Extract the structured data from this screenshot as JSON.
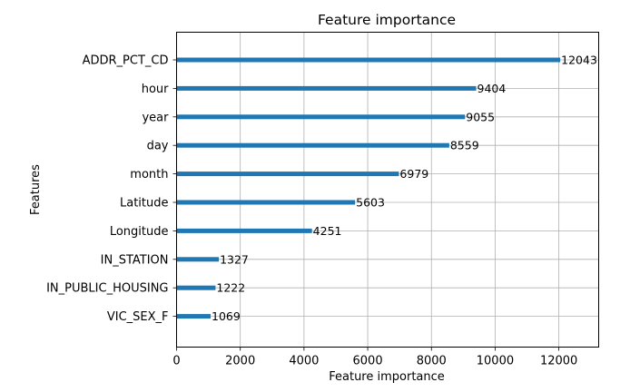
{
  "chart_data": {
    "type": "bar",
    "orientation": "horizontal",
    "title": "Feature importance",
    "xlabel": "Feature importance",
    "ylabel": "Features",
    "categories": [
      "ADDR_PCT_CD",
      "hour",
      "year",
      "day",
      "month",
      "Latitude",
      "Longitude",
      "IN_STATION",
      "IN_PUBLIC_HOUSING",
      "VIC_SEX_F"
    ],
    "values": [
      12043,
      9404,
      9055,
      8559,
      6979,
      5603,
      4251,
      1327,
      1222,
      1069
    ],
    "xlim": [
      0,
      13250
    ],
    "xticks": [
      0,
      2000,
      4000,
      6000,
      8000,
      10000,
      12000
    ],
    "grid": true,
    "bar_color": "#1f77b4",
    "show_value_labels": true
  }
}
